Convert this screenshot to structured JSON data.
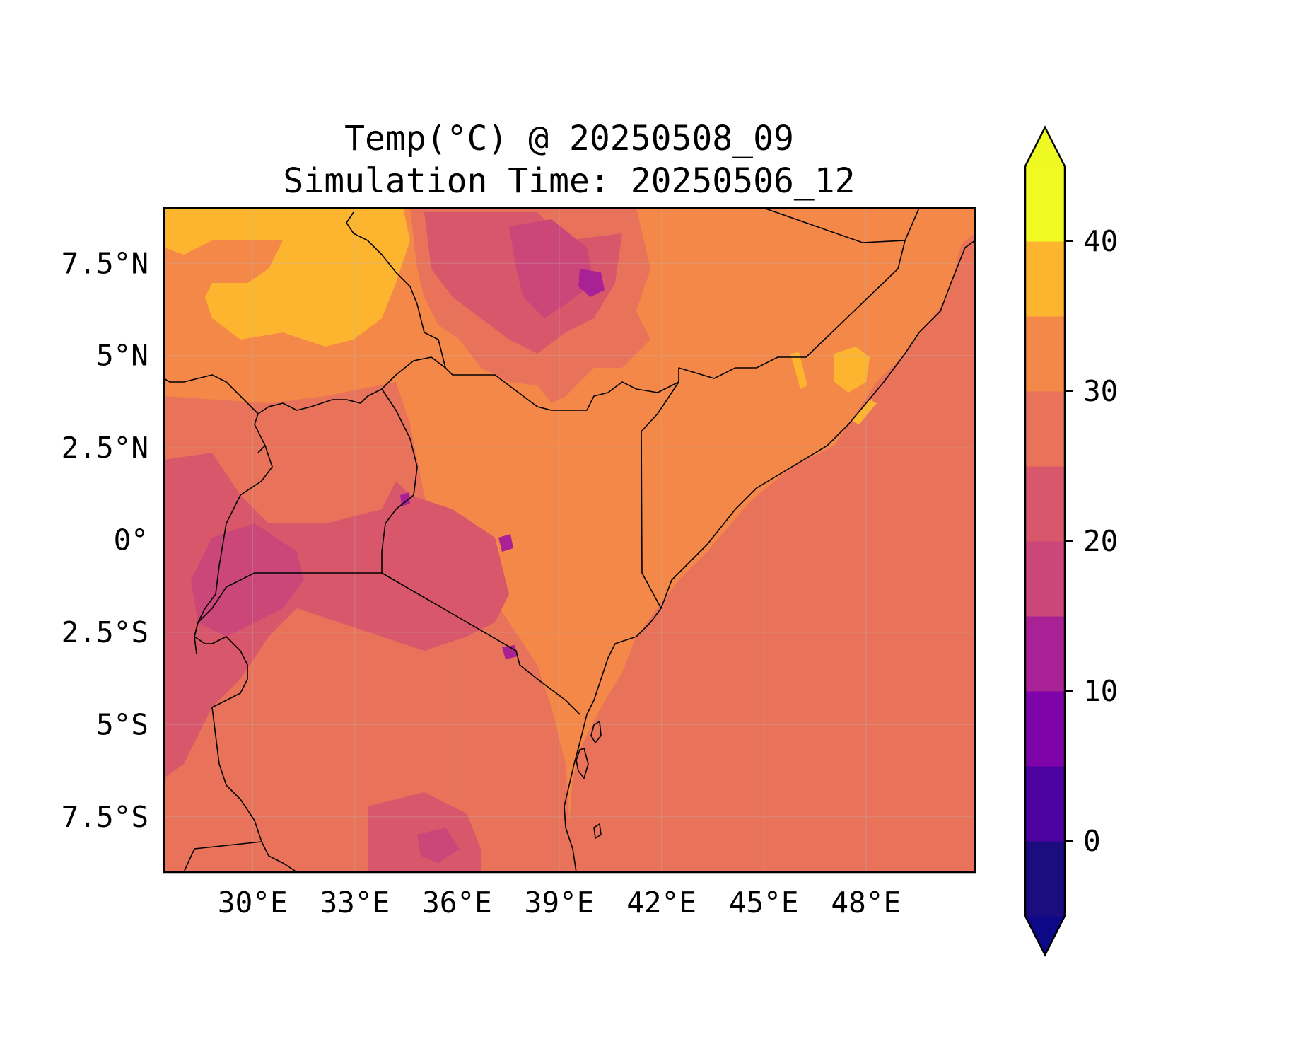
{
  "title": {
    "line1": "Temp(°C) @ 20250508_09",
    "line2": "Simulation Time: 20250506_12"
  },
  "map": {
    "projection": "PlateCarree",
    "lon_range": [
      27.4,
      51.2
    ],
    "lat_range": [
      -9.0,
      9.0
    ],
    "x_ticks": [
      {
        "value": 30,
        "label": "30°E"
      },
      {
        "value": 33,
        "label": "33°E"
      },
      {
        "value": 36,
        "label": "36°E"
      },
      {
        "value": 39,
        "label": "39°E"
      },
      {
        "value": 42,
        "label": "42°E"
      },
      {
        "value": 45,
        "label": "45°E"
      },
      {
        "value": 48,
        "label": "48°E"
      }
    ],
    "y_ticks": [
      {
        "value": 7.5,
        "label": "7.5°N"
      },
      {
        "value": 5,
        "label": "5°N"
      },
      {
        "value": 2.5,
        "label": "2.5°N"
      },
      {
        "value": 0,
        "label": "0°"
      },
      {
        "value": -2.5,
        "label": "2.5°S"
      },
      {
        "value": -5,
        "label": "5°S"
      },
      {
        "value": -7.5,
        "label": "7.5°S"
      }
    ],
    "gridlines": true,
    "ocean_color": "#e8735a"
  },
  "colorbar": {
    "cmap": "plasma",
    "extend": "both",
    "levels": [
      -5,
      0,
      5,
      10,
      15,
      20,
      25,
      30,
      35,
      40,
      45
    ],
    "colors": [
      "#1b0c80",
      "#4c02a1",
      "#7e03a8",
      "#a82296",
      "#cb4679",
      "#d8576b",
      "#e8735a",
      "#f48849",
      "#fdb42f",
      "#f0f921"
    ],
    "under_color": "#0d0887",
    "over_color": "#eef822",
    "tick_labels": [
      {
        "value": 0,
        "label": "0"
      },
      {
        "value": 10,
        "label": "10"
      },
      {
        "value": 20,
        "label": "20"
      },
      {
        "value": 30,
        "label": "30"
      },
      {
        "value": 40,
        "label": "40"
      }
    ]
  }
}
